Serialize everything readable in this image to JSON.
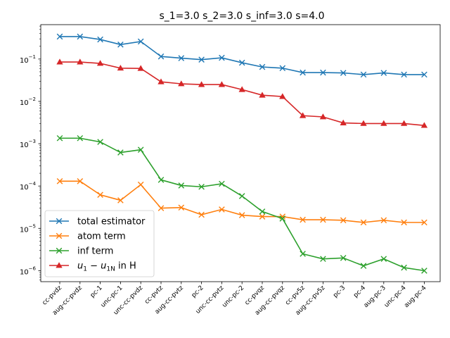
{
  "chart_data": {
    "type": "line",
    "title": "s_1=3.0 s_2=3.0 s_inf=3.0 s=4.0",
    "xlabel": "",
    "ylabel": "",
    "yscale": "log",
    "ylim": [
      5.5e-07,
      0.65
    ],
    "y_ticks": [
      {
        "value": 1e-06,
        "base": "10",
        "exp": "−6"
      },
      {
        "value": 1e-05,
        "base": "10",
        "exp": "−5"
      },
      {
        "value": 0.0001,
        "base": "10",
        "exp": "−4"
      },
      {
        "value": 0.001,
        "base": "10",
        "exp": "−3"
      },
      {
        "value": 0.01,
        "base": "10",
        "exp": "−2"
      },
      {
        "value": 0.1,
        "base": "10",
        "exp": "−1"
      }
    ],
    "grid": false,
    "legend_position": "lower-left",
    "categories": [
      "cc-pvdz",
      "aug-cc-pvdz",
      "pc-1",
      "unc-pc-1",
      "unc-cc-pvdz",
      "cc-pvtz",
      "aug-cc-pvtz",
      "pc-2",
      "unc-cc-pvtz",
      "unc-pc-2",
      "cc-pvqz",
      "aug-cc-pvqz",
      "cc-pv5z",
      "aug-cc-pv5z",
      "pc-3",
      "pc-4",
      "aug-pc-3",
      "unc-pc-4",
      "aug-pc-4"
    ],
    "series": [
      {
        "name": "total estimator",
        "label_main": "total estimator",
        "marker": "x",
        "color": "#1f77b4",
        "values": [
          0.34,
          0.34,
          0.29,
          0.22,
          0.26,
          0.115,
          0.105,
          0.097,
          0.107,
          0.082,
          0.065,
          0.061,
          0.048,
          0.048,
          0.047,
          0.043,
          0.047,
          0.043,
          0.043
        ]
      },
      {
        "name": "atom term",
        "label_main": "atom term",
        "marker": "x",
        "color": "#ff7f0e",
        "values": [
          0.00013,
          0.00013,
          6.2e-05,
          4.6e-05,
          0.000108,
          3e-05,
          3.1e-05,
          2.1e-05,
          2.8e-05,
          2.05e-05,
          1.9e-05,
          1.9e-05,
          1.6e-05,
          1.6e-05,
          1.55e-05,
          1.38e-05,
          1.55e-05,
          1.38e-05,
          1.38e-05
        ]
      },
      {
        "name": "inf term",
        "label_main": "inf term",
        "marker": "x",
        "color": "#2ca02c",
        "values": [
          0.00135,
          0.00135,
          0.0011,
          0.00062,
          0.00072,
          0.00014,
          0.000103,
          9.6e-05,
          0.000113,
          5.8e-05,
          2.5e-05,
          1.7e-05,
          2.5e-06,
          1.9e-06,
          2e-06,
          1.3e-06,
          1.9e-06,
          1.18e-06,
          1e-06
        ]
      },
      {
        "name": "u_1 − u_1N in H",
        "label_main": "u",
        "label_sub1": "1",
        "label_mid": " − u",
        "label_sub2": "1N",
        "label_tail": " in H",
        "marker": "triangle",
        "color": "#d62728",
        "values": [
          0.085,
          0.085,
          0.079,
          0.061,
          0.06,
          0.029,
          0.026,
          0.025,
          0.025,
          0.019,
          0.014,
          0.013,
          0.0046,
          0.0043,
          0.0031,
          0.003,
          0.003,
          0.003,
          0.0027
        ]
      }
    ]
  }
}
